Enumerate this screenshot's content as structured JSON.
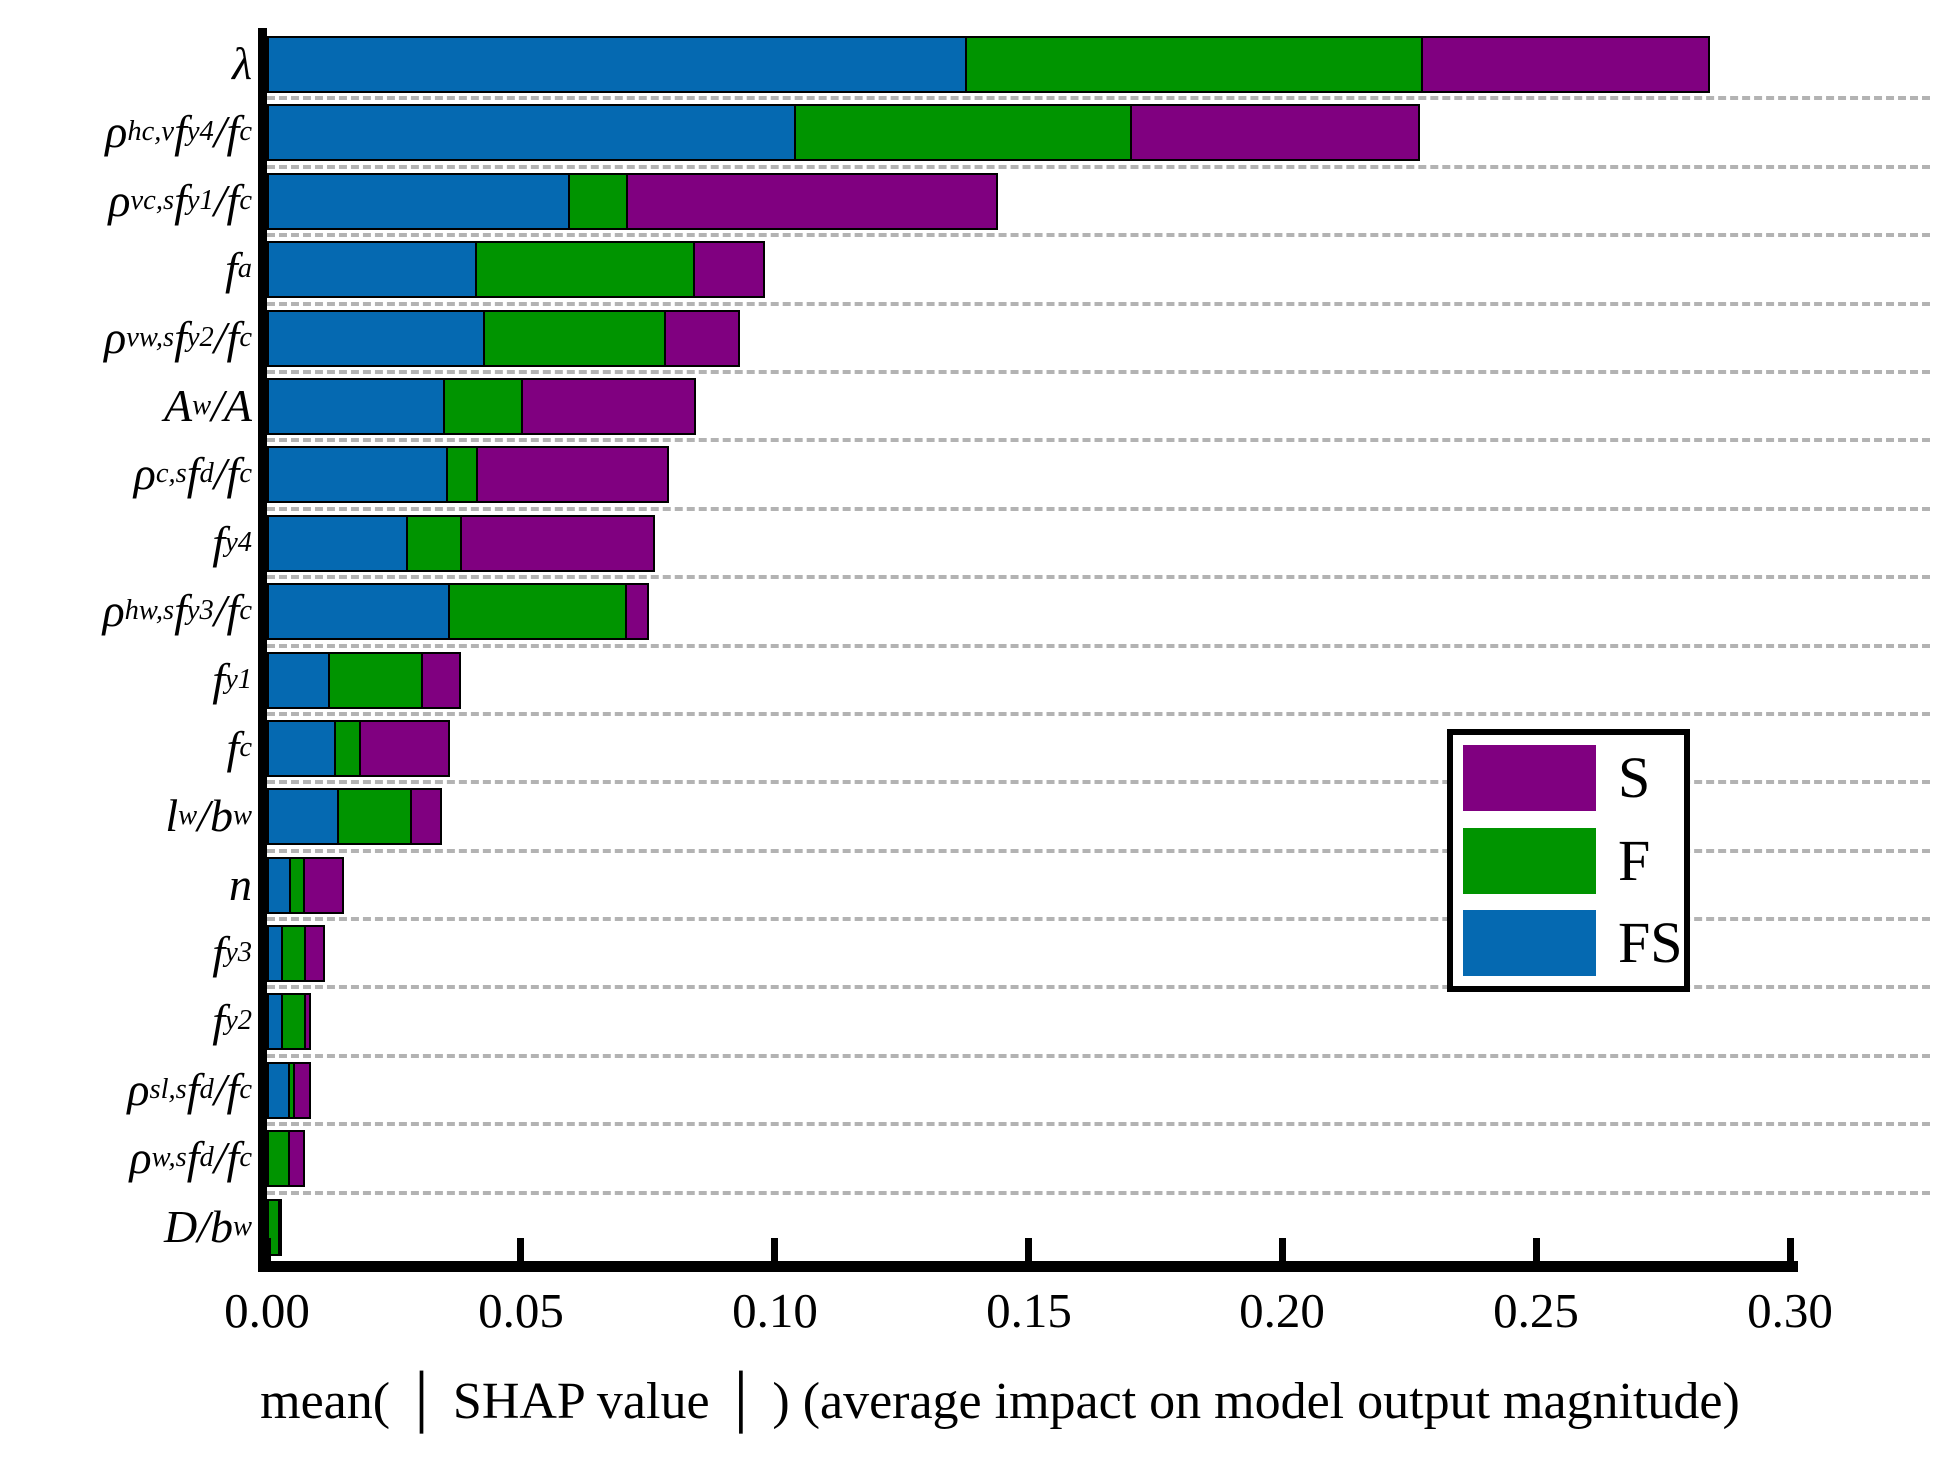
{
  "chart_data": {
    "type": "bar",
    "orientation": "horizontal",
    "stacked": true,
    "grid": "horizontal-dashed",
    "xlabel": "mean( │ SHAP value │ ) (average impact on model output magnitude)",
    "ylabel": "",
    "title": "",
    "xlim": [
      0.0,
      0.3
    ],
    "xtick_labels": [
      "0.00",
      "0.05",
      "0.10",
      "0.15",
      "0.20",
      "0.25",
      "0.30"
    ],
    "xtick_values": [
      0.0,
      0.05,
      0.1,
      0.15,
      0.2,
      0.25,
      0.3
    ],
    "categories": [
      "λ",
      "ρ_{hc,v}f_{y4}/f_{c}",
      "ρ_{vc,s}f_{y1}/f_{c}",
      "f_{a}",
      "ρ_{vw,s}f_{y2}/f_{c}",
      "A_{w}/A",
      "ρ_{c,s}f_{d}/f_{c}",
      "f_{y4}",
      "ρ_{hw,s}f_{y3}/f_{c}",
      "f_{y1}",
      "f_{c}",
      "l_{w}/b_{w}",
      "n",
      "f_{y3}",
      "f_{y2}",
      "ρ_{sl,s}f_{d}/f_{c}",
      "ρ_{w,s}f_{d}/f_{c}",
      "D/b_{w}"
    ],
    "series": [
      {
        "name": "FS",
        "color": "#0569B1",
        "values": [
          0.1378,
          0.1043,
          0.0596,
          0.0413,
          0.0429,
          0.035,
          0.0356,
          0.0277,
          0.036,
          0.0124,
          0.0136,
          0.0142,
          0.0047,
          0.0031,
          0.0031,
          0.0045,
          0.0,
          0.0
        ]
      },
      {
        "name": "F",
        "color": "#009400",
        "values": [
          0.0903,
          0.0665,
          0.0118,
          0.0433,
          0.036,
          0.0157,
          0.0063,
          0.011,
          0.0352,
          0.0187,
          0.0053,
          0.0148,
          0.0031,
          0.0049,
          0.0049,
          0.0014,
          0.0045,
          0.0026
        ]
      },
      {
        "name": "S",
        "color": "#800080",
        "values": [
          0.0569,
          0.0572,
          0.0732,
          0.0142,
          0.015,
          0.0344,
          0.038,
          0.0384,
          0.0047,
          0.0079,
          0.0179,
          0.0063,
          0.0081,
          0.0041,
          0.0014,
          0.0035,
          0.0033,
          0.0008
        ]
      }
    ],
    "legend": {
      "position": "center-right",
      "entries": [
        {
          "label": "S",
          "color": "#800080"
        },
        {
          "label": "F",
          "color": "#009400"
        },
        {
          "label": "FS",
          "color": "#0569B1"
        }
      ]
    }
  }
}
